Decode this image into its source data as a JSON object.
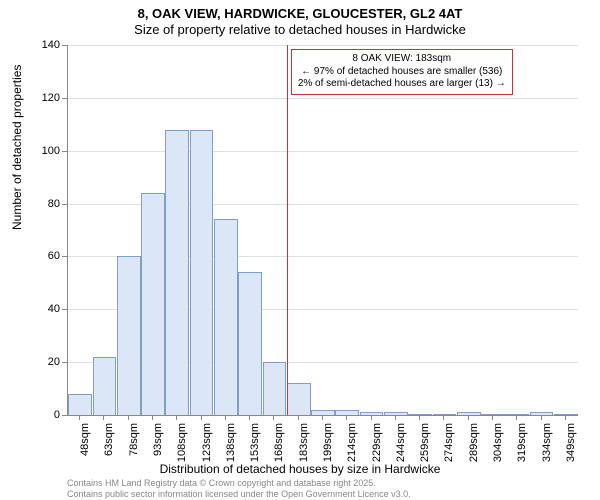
{
  "title_line1": "8, OAK VIEW, HARDWICKE, GLOUCESTER, GL2 4AT",
  "title_line2": "Size of property relative to detached houses in Hardwicke",
  "y_axis_label": "Number of detached properties",
  "x_axis_label": "Distribution of detached houses by size in Hardwicke",
  "footnote1": "Contains HM Land Registry data © Crown copyright and database right 2025.",
  "footnote2": "Contains public sector information licensed under the Open Government Licence v3.0.",
  "chart": {
    "type": "histogram",
    "background_color": "#ffffff",
    "grid_color": "#e0e0e0",
    "axis_color": "#888888",
    "bar_fill": "#dbe7f6",
    "bar_stroke": "#7d9fc9",
    "ylim": [
      0,
      140
    ],
    "ytick_step": 20,
    "yticks": [
      0,
      20,
      40,
      60,
      80,
      100,
      120,
      140
    ],
    "x_categories": [
      "48sqm",
      "63sqm",
      "78sqm",
      "93sqm",
      "108sqm",
      "123sqm",
      "138sqm",
      "153sqm",
      "168sqm",
      "183sqm",
      "199sqm",
      "214sqm",
      "229sqm",
      "244sqm",
      "259sqm",
      "274sqm",
      "289sqm",
      "304sqm",
      "319sqm",
      "334sqm",
      "349sqm"
    ],
    "values": [
      8,
      22,
      60,
      84,
      108,
      108,
      74,
      54,
      20,
      12,
      2,
      2,
      1,
      1,
      0,
      0,
      1,
      0,
      0,
      1,
      0
    ],
    "marker": {
      "index": 9,
      "color": "#cc3333",
      "width": 1
    },
    "annotation": {
      "line1": "8 OAK VIEW: 183sqm",
      "line2": "← 97% of detached houses are smaller (536)",
      "line3": "2% of semi-detached houses are larger (13) →",
      "border_color": "#cc3333",
      "border_width": 1,
      "background": "#ffffff",
      "fontsize": 10
    }
  }
}
